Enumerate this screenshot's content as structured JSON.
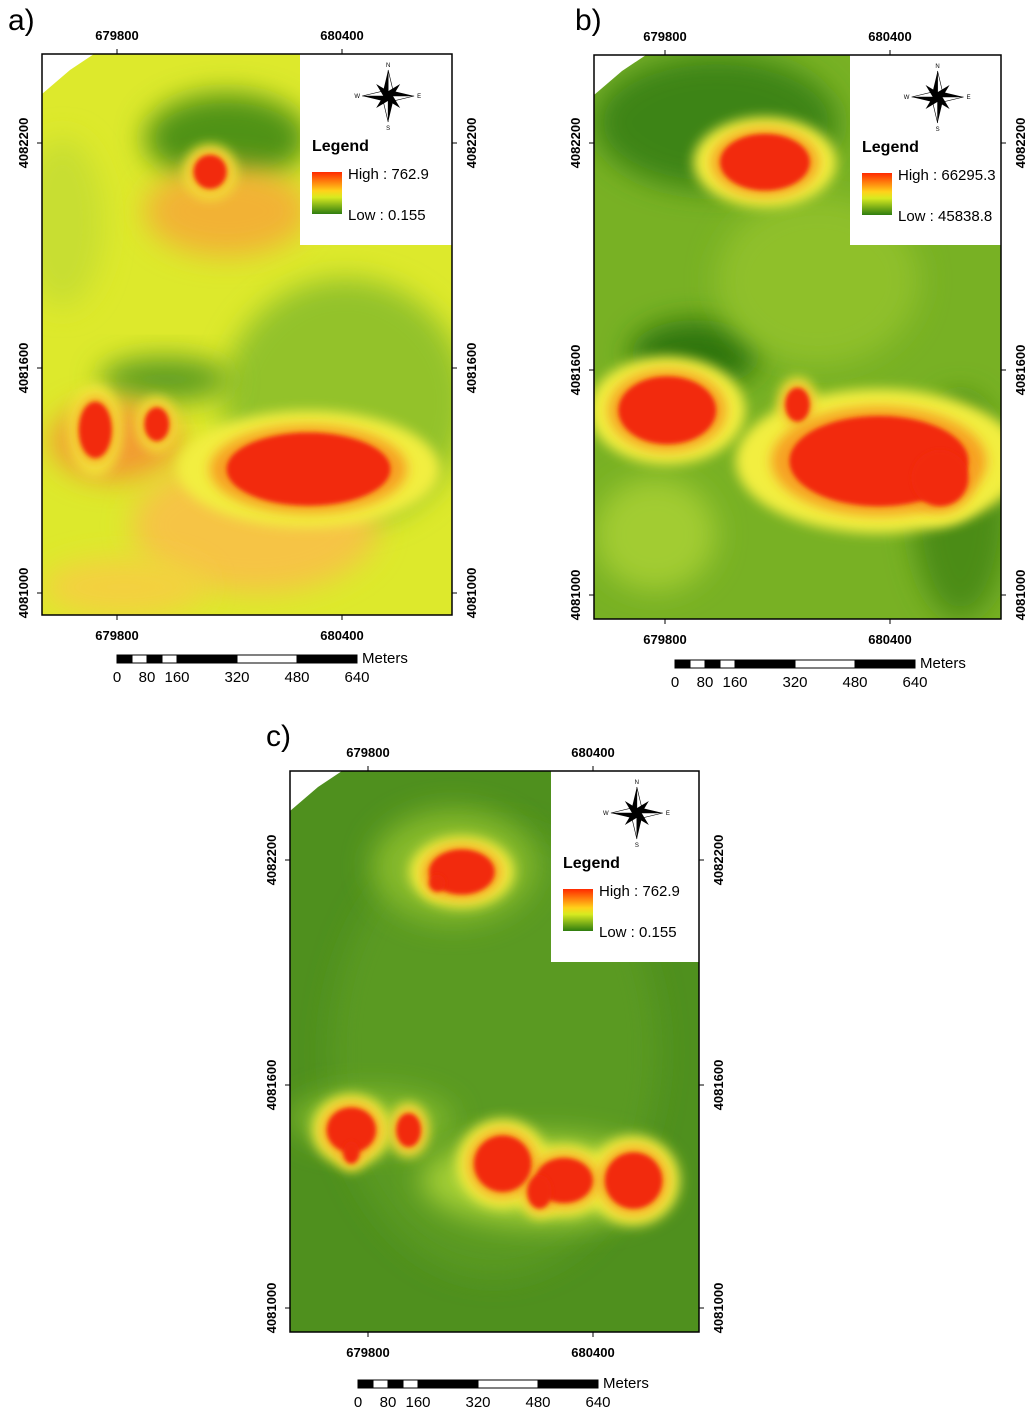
{
  "panels": [
    {
      "label": "a)",
      "x_ticks": [
        679800,
        680400
      ],
      "y_ticks": [
        4082200,
        4081600,
        4081000
      ],
      "legend": {
        "title": "Legend",
        "high": "High : 762.9",
        "low": "Low : 0.155"
      },
      "compass": [
        "N",
        "E",
        "S",
        "W"
      ],
      "scale": {
        "unit": "Meters",
        "labels": [
          0,
          80,
          160,
          320,
          480,
          640
        ]
      }
    },
    {
      "label": "b)",
      "x_ticks": [
        679800,
        680400
      ],
      "y_ticks": [
        4082200,
        4081600,
        4081000
      ],
      "legend": {
        "title": "Legend",
        "high": "High : 66295.3",
        "low": "Low : 45838.8"
      },
      "compass": [
        "N",
        "E",
        "S",
        "W"
      ],
      "scale": {
        "unit": "Meters",
        "labels": [
          0,
          80,
          160,
          320,
          480,
          640
        ]
      }
    },
    {
      "label": "c)",
      "x_ticks": [
        679800,
        680400
      ],
      "y_ticks": [
        4082200,
        4081600,
        4081000
      ],
      "legend": {
        "title": "Legend",
        "high": "High : 762.9",
        "low": "Low : 0.155"
      },
      "compass": [
        "N",
        "E",
        "S",
        "W"
      ],
      "scale": {
        "unit": "Meters",
        "labels": [
          0,
          80,
          160,
          320,
          480,
          640
        ]
      }
    }
  ]
}
